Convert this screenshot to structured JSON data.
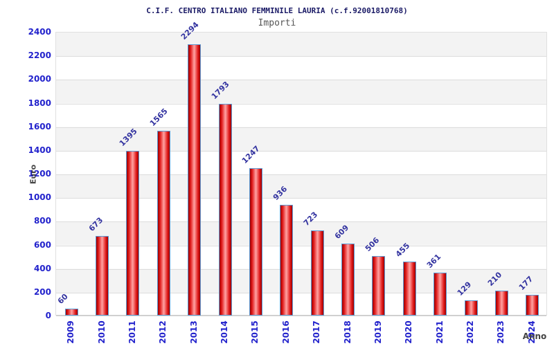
{
  "chart_data": {
    "type": "bar",
    "title": "C.I.F. CENTRO ITALIANO FEMMINILE LAURIA (c.f.92001810768)",
    "subtitle": "Importi",
    "xlabel": "Anno",
    "ylabel": "Euro",
    "categories": [
      "2009",
      "2010",
      "2011",
      "2012",
      "2013",
      "2014",
      "2015",
      "2016",
      "2017",
      "2018",
      "2019",
      "2020",
      "2021",
      "2022",
      "2023",
      "2024"
    ],
    "values": [
      60,
      673,
      1395,
      1565,
      2294,
      1793,
      1247,
      936,
      723,
      609,
      506,
      455,
      361,
      129,
      210,
      177
    ],
    "ylim": [
      0,
      2400
    ],
    "ytick_step": 200,
    "grid": true,
    "legend": "none",
    "colors": {
      "title_text": "#1a1a66",
      "subtitle_text": "#555555",
      "tick_text": "#2222cc",
      "value_label_text": "#3333a0",
      "axis_title_text": "#444444",
      "bar_edge": "#9b0000",
      "bar_mid": "#e01818",
      "bar_center": "#ffa3a3",
      "bar_border": "#5b9bd5",
      "band_gray": "#f3f3f3",
      "band_white": "#ffffff",
      "gridline": "#dcdcdc",
      "axis_line": "#d0d0d0"
    }
  }
}
